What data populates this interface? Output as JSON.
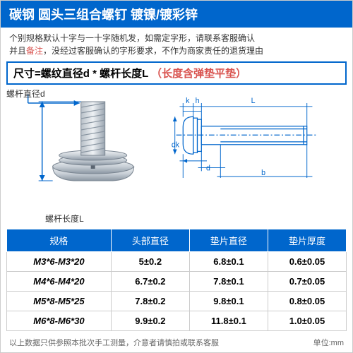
{
  "header": {
    "title": "碳钢 圆头三组合螺钉 镀镍/镀彩锌"
  },
  "notice": {
    "line1_a": "个别规格默认十字与一十字随机发，如需定字形，请联系客服确认",
    "line1_b": "并且",
    "line1_c": "备注",
    "line1_d": "，没经过客服确认的字形要求，不作为商家责任的退货理由"
  },
  "size_formula": {
    "prefix": "尺寸=螺纹直径d * 螺杆长度L",
    "suffix": "（长度含弹垫平垫）"
  },
  "labels": {
    "diameter": "螺杆直径d",
    "length": "螺杆长度L",
    "dim_k": "k",
    "dim_h": "h",
    "dim_L": "L",
    "dim_dk": "dk",
    "dim_d": "d",
    "dim_b": "b"
  },
  "table": {
    "columns": [
      "规格",
      "头部直径",
      "垫片直径",
      "垫片厚度"
    ],
    "rows": [
      [
        "M3*6-M3*20",
        "5±0.2",
        "6.8±0.1",
        "0.6±0.05"
      ],
      [
        "M4*6-M4*20",
        "6.7±0.2",
        "7.8±0.1",
        "0.7±0.05"
      ],
      [
        "M5*8-M5*25",
        "7.8±0.2",
        "9.8±0.1",
        "0.8±0.05"
      ],
      [
        "M6*8-M6*30",
        "9.9±0.2",
        "11.8±0.1",
        "1.0±0.05"
      ]
    ]
  },
  "footer": {
    "left": "以上数据只供参照本批次手工测量，介意者请慎拍或联系客服",
    "right": "单位:mm"
  },
  "colors": {
    "primary": "#0066cc",
    "accent": "#d9534f",
    "screw_body": "#d8dde2",
    "screw_shadow": "#95a0aa"
  }
}
